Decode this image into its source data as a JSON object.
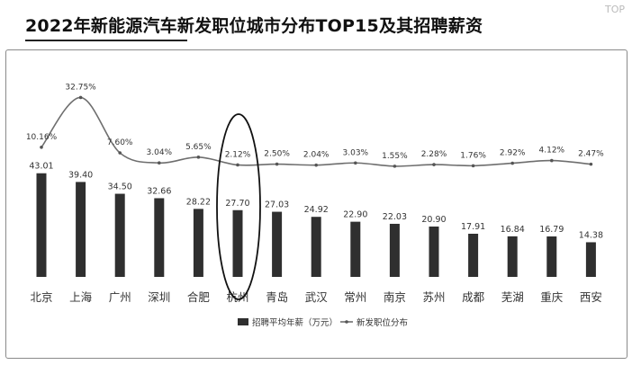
{
  "chart_data": {
    "type": "bar",
    "title": "2022年新能源汽车新发职位城市分布TOP15及其招聘薪资",
    "categories": [
      "北京",
      "上海",
      "广州",
      "深圳",
      "合肥",
      "杭州",
      "青岛",
      "武汉",
      "常州",
      "南京",
      "苏州",
      "成都",
      "芜湖",
      "重庆",
      "西安"
    ],
    "series": [
      {
        "name": "招聘平均年薪（万元）",
        "kind": "bar",
        "values": [
          43.01,
          39.4,
          34.5,
          32.66,
          28.22,
          27.7,
          27.03,
          24.92,
          22.9,
          22.03,
          20.9,
          17.91,
          16.84,
          16.79,
          14.38
        ],
        "labels": [
          "43.01",
          "39.40",
          "34.50",
          "32.66",
          "28.22",
          "27.70",
          "27.03",
          "24.92",
          "22.90",
          "22.03",
          "20.90",
          "17.91",
          "16.84",
          "16.79",
          "14.38"
        ]
      },
      {
        "name": "新发职位分布",
        "kind": "line",
        "values": [
          10.16,
          32.75,
          7.6,
          3.04,
          5.65,
          2.12,
          2.5,
          2.04,
          3.03,
          1.55,
          2.28,
          1.76,
          2.92,
          4.12,
          2.47
        ],
        "labels": [
          "10.16%",
          "32.75%",
          "7.60%",
          "3.04%",
          "5.65%",
          "2.12%",
          "2.50%",
          "2.04%",
          "3.03%",
          "1.55%",
          "2.28%",
          "1.76%",
          "2.92%",
          "4.12%",
          "2.47%"
        ]
      }
    ],
    "highlight": "杭州",
    "legend_position": "bottom-center",
    "grid": false,
    "colors": {
      "bar": "#2f2f2f",
      "line": "#6e6e6e",
      "text": "#333333",
      "highlight": "#111111"
    }
  },
  "brand": "TOP"
}
